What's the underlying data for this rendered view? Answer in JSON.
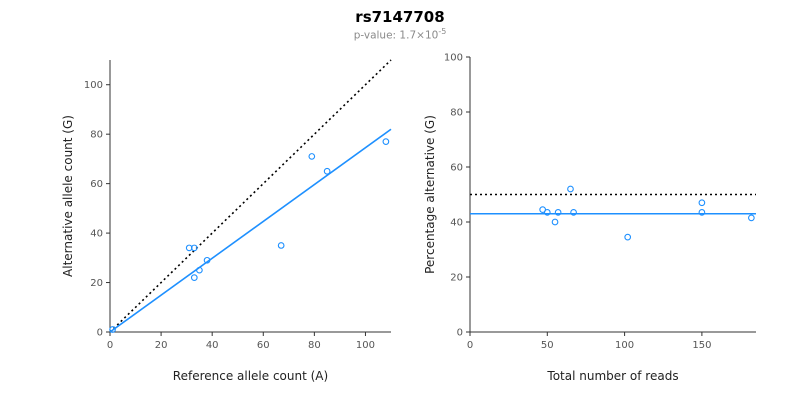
{
  "header": {
    "title": "rs7147708",
    "subtitle": {
      "prefix": "p-value: ",
      "mantissa": "1.7",
      "multiplier": "×",
      "base": "10",
      "exponent": "-5"
    }
  },
  "chart_data": [
    {
      "type": "scatter",
      "panel": "left",
      "title": "",
      "xlabel": "Reference allele count (A)",
      "ylabel": "Alternative allele count (G)",
      "xlim": [
        0,
        110
      ],
      "ylim": [
        0,
        110
      ],
      "xticks": [
        0,
        20,
        40,
        60,
        80,
        100
      ],
      "yticks": [
        0,
        20,
        40,
        60,
        80,
        100
      ],
      "grid": false,
      "legend": "none",
      "point_color": "#1E90FF",
      "points": [
        [
          1,
          1
        ],
        [
          31,
          34
        ],
        [
          33,
          34
        ],
        [
          33,
          22
        ],
        [
          35,
          25
        ],
        [
          38,
          29
        ],
        [
          67,
          35
        ],
        [
          79,
          71
        ],
        [
          85,
          65
        ],
        [
          108,
          77
        ]
      ],
      "lines": [
        {
          "name": "identity",
          "meaning": "y equals x (50% expectation)",
          "style": "dotted",
          "color": "#000000",
          "from": [
            0,
            0
          ],
          "to": [
            110,
            110
          ]
        },
        {
          "name": "fit",
          "meaning": "fitted allelic ratio",
          "style": "solid",
          "color": "#1E90FF",
          "from": [
            0,
            0
          ],
          "to": [
            110,
            82
          ]
        }
      ]
    },
    {
      "type": "scatter",
      "panel": "right",
      "title": "",
      "xlabel": "Total number of reads",
      "ylabel": "Percentage alternative (G)",
      "xlim": [
        0,
        185
      ],
      "ylim": [
        0,
        100
      ],
      "xticks": [
        0,
        50,
        100,
        150
      ],
      "yticks": [
        0,
        20,
        40,
        60,
        80,
        100
      ],
      "grid": false,
      "legend": "none",
      "point_color": "#1E90FF",
      "points": [
        [
          47,
          44.5
        ],
        [
          50,
          43.5
        ],
        [
          55,
          40
        ],
        [
          57,
          43.5
        ],
        [
          65,
          52
        ],
        [
          67,
          43.5
        ],
        [
          102,
          34.5
        ],
        [
          150,
          47
        ],
        [
          150,
          43.5
        ],
        [
          182,
          41.5
        ]
      ],
      "lines": [
        {
          "name": "fifty-percent",
          "meaning": "50% reference expectation",
          "style": "dotted",
          "color": "#000000",
          "from": [
            0,
            50
          ],
          "to": [
            185,
            50
          ]
        },
        {
          "name": "mean-percentage",
          "meaning": "mean alternative percentage (~43%)",
          "style": "solid",
          "color": "#1E90FF",
          "from": [
            0,
            43
          ],
          "to": [
            185,
            43
          ]
        }
      ]
    }
  ]
}
